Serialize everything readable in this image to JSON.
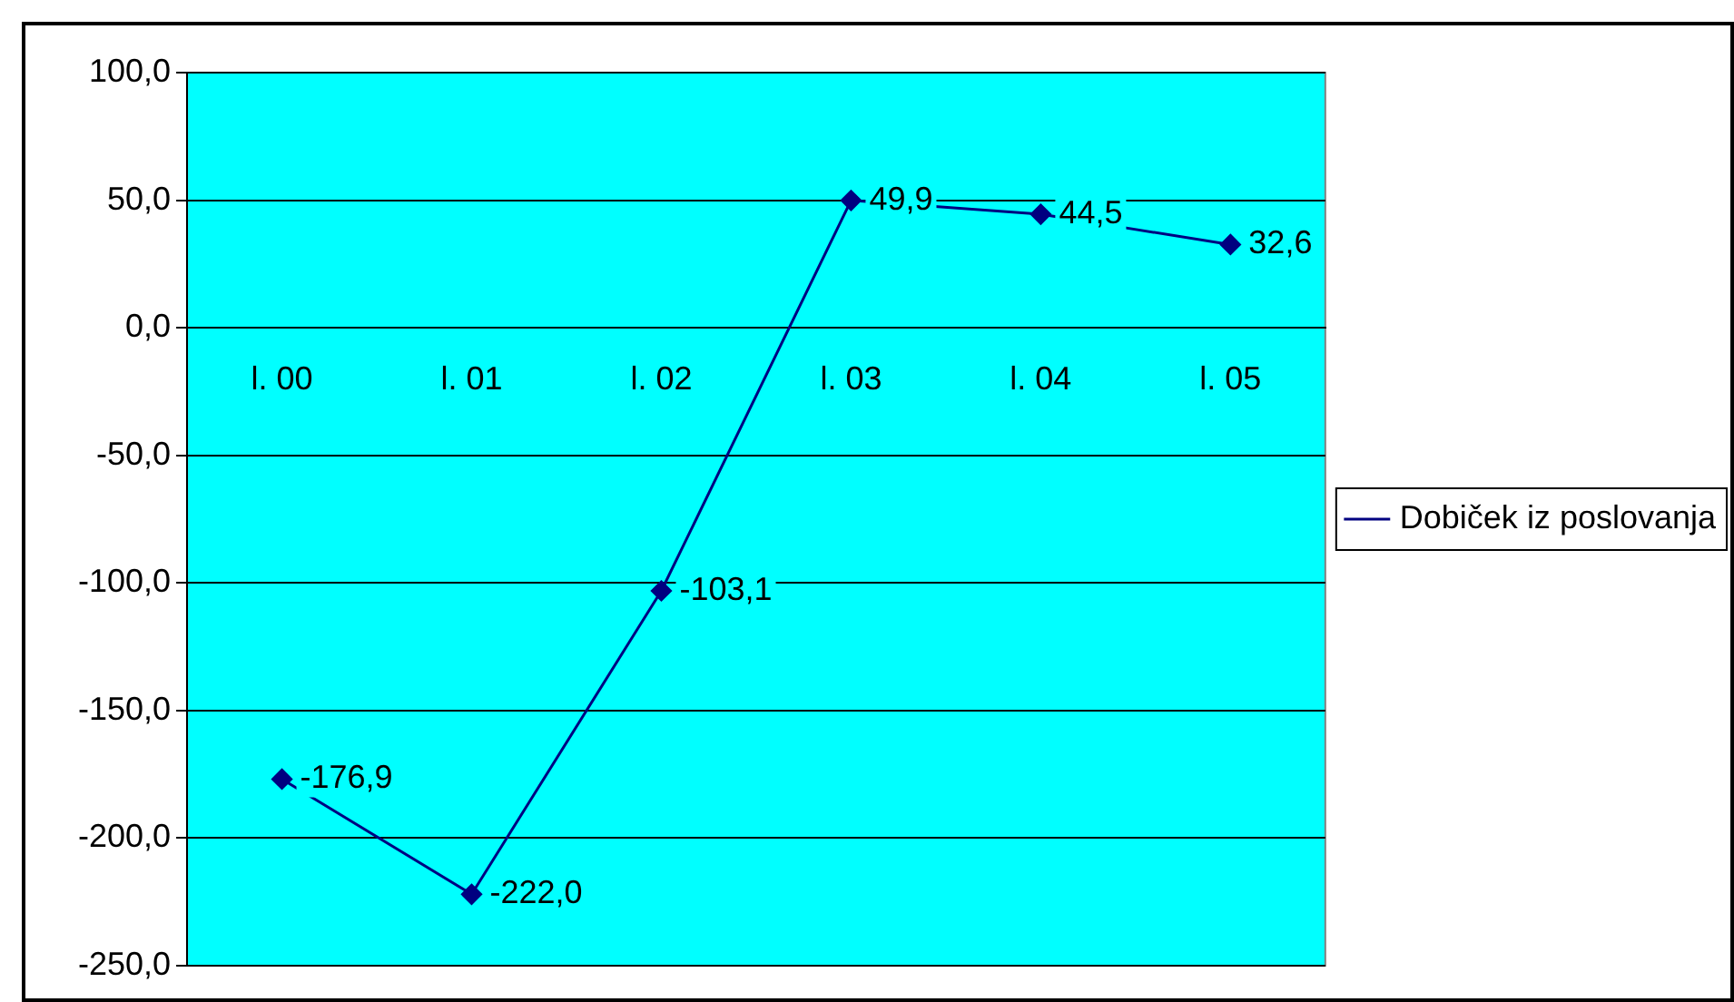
{
  "chart_data": {
    "type": "line",
    "categories": [
      "l. 00",
      "l. 01",
      "l. 02",
      "l. 03",
      "l. 04",
      "l. 05"
    ],
    "series": [
      {
        "name": "Dobiček iz poslovanja",
        "color": "#000080",
        "values": [
          -176.9,
          -222.0,
          -103.1,
          49.9,
          44.5,
          32.6
        ]
      }
    ],
    "value_labels": [
      "-176,9",
      "-222,0",
      "-103,1",
      "49,9",
      "44,5",
      "32,6"
    ],
    "ylim": [
      -250,
      100
    ],
    "yticks": [
      {
        "value": -250,
        "label": "-250,0"
      },
      {
        "value": -200,
        "label": "-200,0"
      },
      {
        "value": -150,
        "label": "-150,0"
      },
      {
        "value": -100,
        "label": "-100,0"
      },
      {
        "value": -50,
        "label": "-50,0"
      },
      {
        "value": 0,
        "label": "0,0"
      },
      {
        "value": 50,
        "label": "50,0"
      },
      {
        "value": 100,
        "label": "100,0"
      }
    ],
    "grid": "y",
    "legend": "right",
    "marker": "diamond",
    "line_style": "solid"
  }
}
